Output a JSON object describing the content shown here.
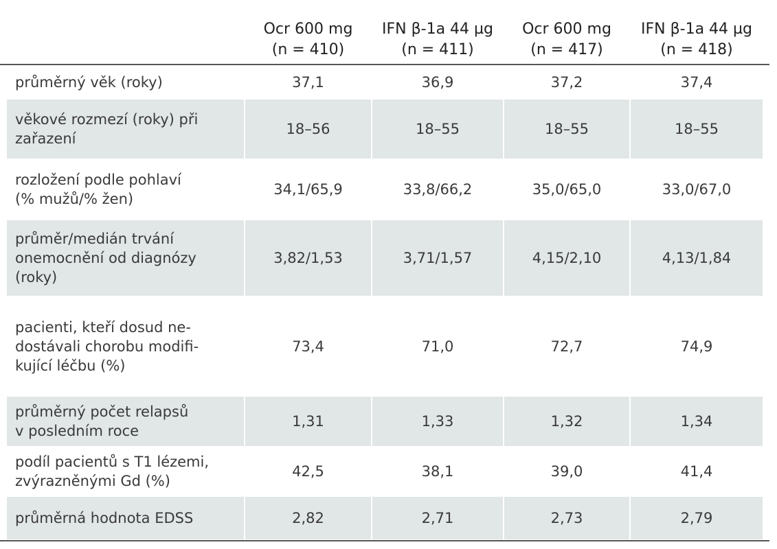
{
  "table": {
    "columns": [
      [
        "Ocr 600 mg",
        "(n = 410)"
      ],
      [
        "IFN β-1a 44 µg",
        "(n = 411)"
      ],
      [
        "Ocr  600 mg",
        "(n = 417)"
      ],
      [
        "IFN β-1a 44 µg",
        "(n = 418)"
      ]
    ],
    "rows": [
      {
        "label": [
          "průměrný věk (roky)"
        ],
        "values": [
          "37,1",
          "36,9",
          "37,2",
          "37,4"
        ]
      },
      {
        "label": [
          "věkové rozmezí (roky) při",
          "zařazení"
        ],
        "values": [
          "18–56",
          "18–55",
          "18–55",
          "18–55"
        ]
      },
      {
        "label": [
          "rozložení podle pohlaví",
          "(% mužů/% žen)"
        ],
        "values": [
          "34,1/65,9",
          "33,8/66,2",
          "35,0/65,0",
          "33,0/67,0"
        ]
      },
      {
        "label": [
          "průměr/medián trvání",
          "onemocnění od diagnózy",
          "(roky)"
        ],
        "values": [
          "3,82/1,53",
          "3,71/1,57",
          "4,15/2,10",
          "4,13/1,84"
        ]
      },
      {
        "label": [
          "pacienti, kteří dosud ne-",
          "dostávali chorobu modifi-",
          "kující léčbu (%)"
        ],
        "values": [
          "73,4",
          "71,0",
          "72,7",
          "74,9"
        ]
      },
      {
        "label": [
          "průměrný počet relapsů",
          "v posledním roce"
        ],
        "values": [
          "1,31",
          "1,33",
          "1,32",
          "1,34"
        ]
      },
      {
        "label": [
          "podíl pacientů s T1 lézemi,",
          "zvýrazněnými Gd (%)"
        ],
        "values": [
          "42,5",
          "38,1",
          "39,0",
          "41,4"
        ]
      },
      {
        "label": [
          "průměrná hodnota EDSS"
        ],
        "values": [
          "2,82",
          "2,71",
          "2,73",
          "2,79"
        ]
      }
    ]
  }
}
